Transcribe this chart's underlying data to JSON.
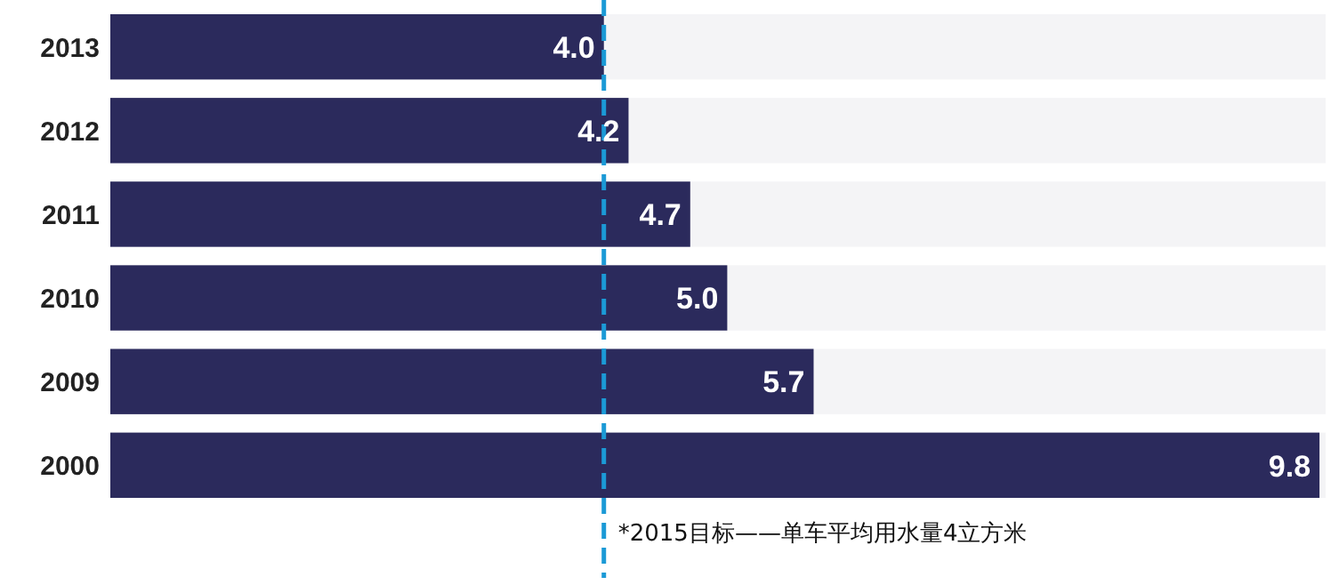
{
  "chart_data": {
    "type": "bar",
    "orientation": "horizontal",
    "categories": [
      "2013",
      "2012",
      "2011",
      "2010",
      "2009",
      "2000"
    ],
    "values": [
      4.0,
      4.2,
      4.7,
      5.0,
      5.7,
      9.8
    ],
    "color": "#2b2a5c",
    "value_labels": [
      "4.0",
      "4.2",
      "4.7",
      "5.0",
      "5.7",
      "9.8"
    ],
    "xlim": [
      0,
      9.85
    ],
    "tick_labels": "y",
    "grid": false,
    "ref_lines": [
      {
        "axis": "x",
        "value": 4,
        "label": "*2015目标——单车平均用水量4立方米",
        "color": "#1b9ad6",
        "line_style": "dashed"
      }
    ]
  }
}
